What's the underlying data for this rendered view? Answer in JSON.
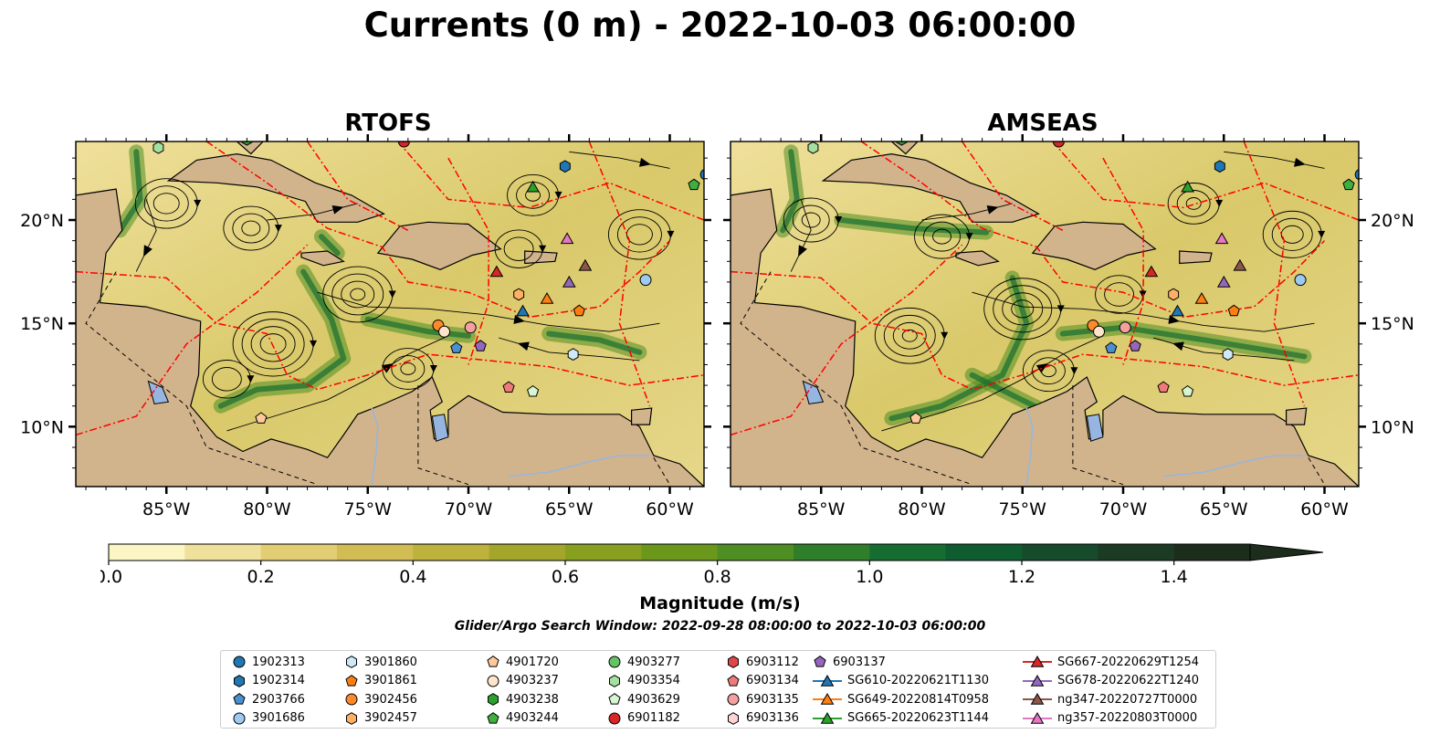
{
  "title": "Currents (0 m) - 2022-10-03 06:00:00",
  "panels": [
    {
      "title": "RTOFS",
      "show_left_labels": true
    },
    {
      "title": "AMSEAS",
      "show_left_labels": false
    }
  ],
  "axes": {
    "lon_ticks": [
      "85°W",
      "80°W",
      "75°W",
      "70°W",
      "65°W",
      "60°W"
    ],
    "lon_tick_values": [
      -85,
      -80,
      -75,
      -70,
      -65,
      -60
    ],
    "lat_ticks": [
      "20°N",
      "15°N",
      "10°N"
    ],
    "lat_tick_values": [
      20,
      15,
      10
    ],
    "lon_range": [
      -89.5,
      -58.3
    ],
    "lat_range": [
      7.1,
      23.8
    ]
  },
  "colorbar": {
    "label": "Magnitude (m/s)",
    "ticks": [
      "0.0",
      "0.2",
      "0.4",
      "0.6",
      "0.8",
      "1.0",
      "1.2",
      "1.4"
    ],
    "tick_values": [
      0.0,
      0.2,
      0.4,
      0.6,
      0.8,
      1.0,
      1.2,
      1.4
    ],
    "range": [
      0,
      1.5
    ],
    "extend": "max",
    "colors": [
      "#fcf6c4",
      "#efe09b",
      "#e2cd75",
      "#d2bd55",
      "#bdb23d",
      "#a4a62c",
      "#87a01f",
      "#6b971b",
      "#4e8e22",
      "#2f7e2a",
      "#156d31",
      "#0f5c31",
      "#164b2c",
      "#1b3b24",
      "#1c2d1c"
    ]
  },
  "search_window": "Glider/Argo Search Window: 2022-09-28 08:00:00 to 2022-10-03 06:00:00",
  "colors": {
    "land": "#d2b48c",
    "pacific": "#96b5e0",
    "track": "#ff0000",
    "coast": "#000000"
  },
  "legend": [
    {
      "label": "1902313",
      "marker": "circle",
      "color": "#1f77b4"
    },
    {
      "label": "1902314",
      "marker": "hexagon",
      "color": "#1f77b4"
    },
    {
      "label": "2903766",
      "marker": "pentagon",
      "color": "#4a8fd0"
    },
    {
      "label": "3901686",
      "marker": "circle",
      "color": "#9ec9f0"
    },
    {
      "label": "3901860",
      "marker": "hexagon",
      "color": "#cfe8fa"
    },
    {
      "label": "3901861",
      "marker": "pentagon",
      "color": "#ff7f0e"
    },
    {
      "label": "3902456",
      "marker": "circle",
      "color": "#ff8a2a"
    },
    {
      "label": "3902457",
      "marker": "hexagon",
      "color": "#ffb066"
    },
    {
      "label": "4901720",
      "marker": "pentagon",
      "color": "#ffca99"
    },
    {
      "label": "4903237",
      "marker": "circle",
      "color": "#ffe4cc"
    },
    {
      "label": "4903238",
      "marker": "hexagon",
      "color": "#2ca02c"
    },
    {
      "label": "4903244",
      "marker": "pentagon",
      "color": "#3fb03f"
    },
    {
      "label": "4903277",
      "marker": "circle",
      "color": "#62c462"
    },
    {
      "label": "4903354",
      "marker": "hexagon",
      "color": "#a6e0a0"
    },
    {
      "label": "4903629",
      "marker": "pentagon",
      "color": "#d6f5d0"
    },
    {
      "label": "6901182",
      "marker": "circle",
      "color": "#d62728"
    },
    {
      "label": "6903112",
      "marker": "hexagon",
      "color": "#e04848"
    },
    {
      "label": "6903134",
      "marker": "pentagon",
      "color": "#ef7a7a"
    },
    {
      "label": "6903135",
      "marker": "circle",
      "color": "#f5a0a0"
    },
    {
      "label": "6903136",
      "marker": "hexagon",
      "color": "#ffd3d3"
    },
    {
      "label": "6903137",
      "marker": "pentagon",
      "color": "#9467bd"
    },
    {
      "label": "SG610-20220621T1130",
      "marker": "triangle",
      "color": "#1f77b4",
      "line": true
    },
    {
      "label": "SG649-20220814T0958",
      "marker": "triangle",
      "color": "#ff7f0e",
      "line": true
    },
    {
      "label": "SG665-20220623T1144",
      "marker": "triangle",
      "color": "#2ca02c",
      "line": true
    },
    {
      "label": "SG667-20220629T1254",
      "marker": "triangle",
      "color": "#d62728",
      "line": true
    },
    {
      "label": "SG678-20220622T1240",
      "marker": "triangle",
      "color": "#9467bd",
      "line": true
    },
    {
      "label": "ng347-20220727T0000",
      "marker": "triangle",
      "color": "#8c564b",
      "line": true
    },
    {
      "label": "ng357-20220803T0000",
      "marker": "triangle",
      "color": "#e377c2",
      "line": true
    }
  ],
  "platforms": [
    {
      "id": "1902313",
      "lon": -58.2,
      "lat": 22.2
    },
    {
      "id": "1902314",
      "lon": -65.2,
      "lat": 22.6
    },
    {
      "id": "2903766",
      "lon": -70.6,
      "lat": 13.8
    },
    {
      "id": "3901686",
      "lon": -61.2,
      "lat": 17.1
    },
    {
      "id": "3901860",
      "lon": -64.8,
      "lat": 13.5
    },
    {
      "id": "3901861",
      "lon": -64.5,
      "lat": 15.6
    },
    {
      "id": "3902456",
      "lon": -71.5,
      "lat": 14.9
    },
    {
      "id": "3902457",
      "lon": -67.5,
      "lat": 16.4
    },
    {
      "id": "4901720",
      "lon": -80.3,
      "lat": 10.4
    },
    {
      "id": "4903237",
      "lon": -71.2,
      "lat": 14.6
    },
    {
      "id": "4903238",
      "lon": -81.0,
      "lat": 23.9
    },
    {
      "id": "4903244",
      "lon": -58.8,
      "lat": 21.7
    },
    {
      "id": "4903354",
      "lon": -85.4,
      "lat": 23.5
    },
    {
      "id": "4903629",
      "lon": -66.8,
      "lat": 11.7
    },
    {
      "id": "6901182",
      "lon": -73.2,
      "lat": 23.8
    },
    {
      "id": "6903134",
      "lon": -68.0,
      "lat": 11.9
    },
    {
      "id": "6903135",
      "lon": -69.9,
      "lat": 14.8
    },
    {
      "id": "6903137",
      "lon": -69.4,
      "lat": 13.9
    },
    {
      "id": "SG610-20220621T1130",
      "lon": -67.3,
      "lat": 15.6
    },
    {
      "id": "SG649-20220814T0958",
      "lon": -66.1,
      "lat": 16.2
    },
    {
      "id": "SG665-20220623T1144",
      "lon": -66.8,
      "lat": 21.6
    },
    {
      "id": "SG667-20220629T1254",
      "lon": -68.6,
      "lat": 17.5
    },
    {
      "id": "SG678-20220622T1240",
      "lon": -65.0,
      "lat": 17.0
    },
    {
      "id": "ng347-20220727T0000",
      "lon": -64.2,
      "lat": 17.8
    },
    {
      "id": "ng357-20220803T0000",
      "lon": -65.1,
      "lat": 19.1
    }
  ],
  "chart_data": {
    "type": "map",
    "title": "Currents (0 m) - 2022-10-03 06:00:00",
    "panels": [
      "RTOFS",
      "AMSEAS"
    ],
    "x_label": "",
    "y_label": "",
    "xlim": [
      -89.5,
      -58.3
    ],
    "ylim": [
      7.1,
      23.8
    ],
    "colorbar_label": "Magnitude (m/s)",
    "colorbar_range": [
      0,
      1.5
    ]
  }
}
